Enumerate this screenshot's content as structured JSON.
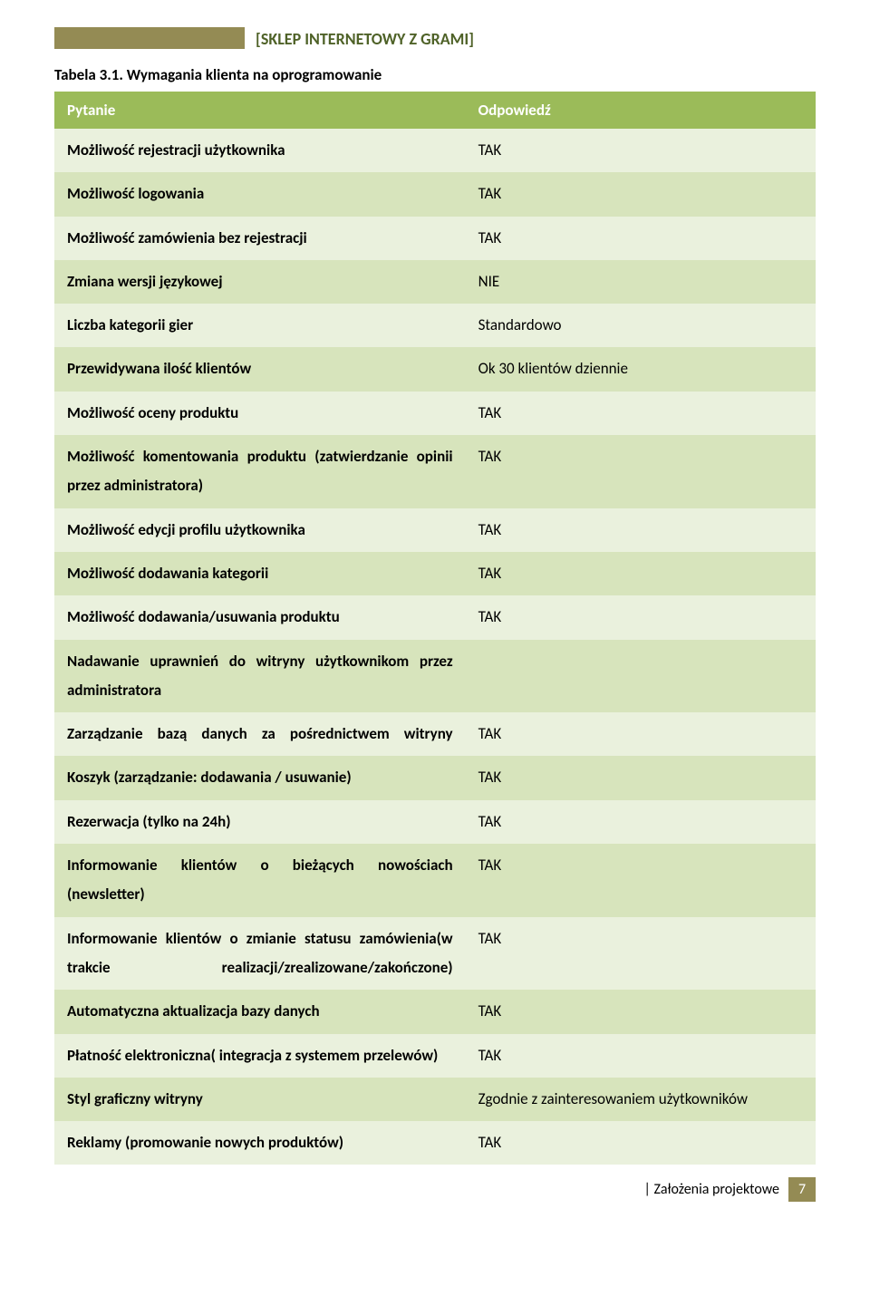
{
  "header": {
    "title": "[SKLEP INTERNETOWY Z GRAMI]"
  },
  "caption": "Tabela 3.1. Wymagania klienta na oprogramowanie",
  "columns": {
    "question": "Pytanie",
    "answer": "Odpowiedź"
  },
  "rows": [
    {
      "q": "Możliwość rejestracji użytkownika",
      "a": "TAK"
    },
    {
      "q": "Możliwość logowania",
      "a": "TAK"
    },
    {
      "q": "Możliwość zamówienia bez rejestracji",
      "a": "TAK"
    },
    {
      "q": "Zmiana wersji językowej",
      "a": "NIE"
    },
    {
      "q": "Liczba kategorii gier",
      "a": "Standardowo"
    },
    {
      "q": "Przewidywana ilość klientów",
      "a": "Ok 30 klientów dziennie"
    },
    {
      "q": "Możliwość oceny produktu",
      "a": "TAK"
    },
    {
      "q": "Możliwość komentowania produktu (zatwierdzanie opinii przez administratora)",
      "a": "TAK"
    },
    {
      "q": "Możliwość edycji profilu użytkownika",
      "a": "TAK"
    },
    {
      "q": "Możliwość dodawania kategorii",
      "a": "TAK"
    },
    {
      "q": "Możliwość dodawania/usuwania produktu",
      "a": "TAK"
    },
    {
      "q": "Nadawanie uprawnień do witryny użytkownikom przez administratora",
      "a": ""
    },
    {
      "q": "Zarządzanie bazą danych za pośrednictwem witryny",
      "a": "TAK"
    },
    {
      "q": "Koszyk (zarządzanie: dodawania / usuwanie)",
      "a": "TAK"
    },
    {
      "q": "Rezerwacja (tylko na 24h)",
      "a": "TAK"
    },
    {
      "q": "Informowanie klientów o bieżących nowościach (newsletter)",
      "a": "TAK"
    },
    {
      "q": "Informowanie klientów o zmianie statusu zamówienia(w trakcie realizacji/zrealizowane/zakończone)",
      "a": "TAK"
    },
    {
      "q": "Automatyczna aktualizacja bazy danych",
      "a": "TAK"
    },
    {
      "q": "Płatność elektroniczna( integracja z systemem przelewów)",
      "a": "TAK"
    },
    {
      "q": "Styl graficzny witryny",
      "a": "Zgodnie z zainteresowaniem użytkowników"
    },
    {
      "q": "Reklamy (promowanie nowych produktów)",
      "a": "TAK"
    }
  ],
  "footer": {
    "section": "| Założenia projektowe",
    "page": "7"
  },
  "colors": {
    "header_block": "#948b54",
    "header_title": "#4f6228",
    "table_header_bg": "#9bbb59",
    "row_odd": "#eaf1dd",
    "row_even": "#d7e4bc"
  }
}
